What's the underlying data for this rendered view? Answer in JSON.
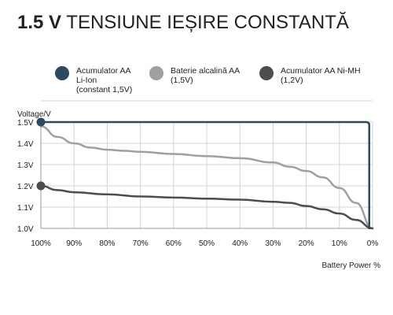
{
  "title": {
    "bold": "1.5 V",
    "rest": " TENSIUNE IEȘIRE CONSTANTĂ"
  },
  "chart_data": {
    "type": "line",
    "title": "1.5 V TENSIUNE IEȘIRE CONSTANTĂ",
    "xlabel": "Battery Power %",
    "ylabel": "Voltage/V",
    "x_ticks": [
      "100%",
      "90%",
      "80%",
      "70%",
      "60%",
      "50%",
      "40%",
      "30%",
      "20%",
      "10%",
      "0%"
    ],
    "y_ticks": [
      "1.0V",
      "1.1V",
      "1.2V",
      "1.3V",
      "1.4V",
      "1.5V"
    ],
    "xlim": [
      100,
      0
    ],
    "ylim": [
      1.0,
      1.5
    ],
    "grid": true,
    "legend_position": "top",
    "series": [
      {
        "name": "Acumulator AA\nLi-Ion\n(constant 1,5V)",
        "color": "#2c4a5e",
        "x": [
          100,
          90,
          80,
          70,
          60,
          50,
          40,
          30,
          20,
          10,
          1,
          0
        ],
        "y": [
          1.5,
          1.5,
          1.5,
          1.5,
          1.5,
          1.5,
          1.5,
          1.5,
          1.5,
          1.5,
          1.5,
          1.0
        ]
      },
      {
        "name": "Baterie alcalină AA\n(1,5V)",
        "color": "#a0a0a0",
        "x": [
          100,
          95,
          90,
          85,
          80,
          75,
          70,
          60,
          50,
          40,
          30,
          25,
          20,
          15,
          10,
          5,
          0
        ],
        "y": [
          1.48,
          1.43,
          1.4,
          1.38,
          1.37,
          1.365,
          1.36,
          1.35,
          1.34,
          1.33,
          1.31,
          1.29,
          1.27,
          1.24,
          1.19,
          1.12,
          1.0
        ]
      },
      {
        "name": "Acumulator AA Ni-MH\n(1,2V)",
        "color": "#4d4d4d",
        "x": [
          100,
          95,
          90,
          80,
          70,
          60,
          50,
          40,
          30,
          25,
          20,
          15,
          10,
          5,
          0
        ],
        "y": [
          1.2,
          1.18,
          1.17,
          1.16,
          1.15,
          1.145,
          1.14,
          1.135,
          1.125,
          1.12,
          1.105,
          1.09,
          1.07,
          1.04,
          1.0
        ]
      }
    ],
    "markers": [
      {
        "series": 0,
        "x": 100,
        "y": 1.5
      },
      {
        "series": 2,
        "x": 100,
        "y": 1.2
      }
    ]
  }
}
